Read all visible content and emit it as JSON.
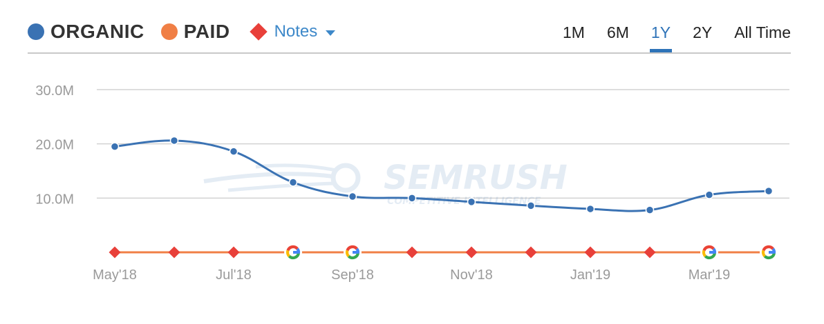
{
  "legend": {
    "organic": {
      "label": "ORGANIC",
      "color": "#3a72b3"
    },
    "paid": {
      "label": "PAID",
      "color": "#f07f45"
    },
    "notes": {
      "label": "Notes",
      "color": "#e8403a"
    }
  },
  "ranges": [
    {
      "label": "1M",
      "active": false
    },
    {
      "label": "6M",
      "active": false
    },
    {
      "label": "1Y",
      "active": true
    },
    {
      "label": "2Y",
      "active": false
    },
    {
      "label": "All Time",
      "active": false
    }
  ],
  "watermark": {
    "brand": "SEMRUSH",
    "tagline": "COMPETITIVE INTELLIGENCE"
  },
  "chart_data": {
    "type": "line",
    "x": [
      "May'18",
      "Jun'18",
      "Jul'18",
      "Aug'18",
      "Sep'18",
      "Oct'18",
      "Nov'18",
      "Dec'18",
      "Jan'19",
      "Feb'19",
      "Mar'19",
      "Apr'19"
    ],
    "x_tick_labels": [
      "May'18",
      "Jul'18",
      "Sep'18",
      "Nov'18",
      "Jan'19",
      "Mar'19"
    ],
    "y_tick_labels": [
      "10.0M",
      "20.0M",
      "30.0M"
    ],
    "ylim": [
      0,
      30000000
    ],
    "grid": true,
    "series": [
      {
        "name": "ORGANIC",
        "color": "#3a72b3",
        "values": [
          19500000,
          20600000,
          18600000,
          12900000,
          10300000,
          10000000,
          9300000,
          8600000,
          8000000,
          7800000,
          10600000,
          11300000
        ]
      },
      {
        "name": "PAID",
        "color": "#f07f45",
        "values": [
          0,
          0,
          0,
          0,
          0,
          0,
          0,
          0,
          0,
          0,
          0,
          0
        ]
      }
    ],
    "markers": [
      "note",
      "note",
      "note",
      "google",
      "google",
      "note",
      "note",
      "note",
      "note",
      "note",
      "google",
      "google"
    ]
  }
}
